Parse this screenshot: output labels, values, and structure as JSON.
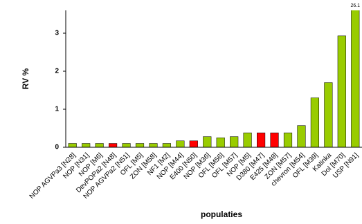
{
  "chart_data": {
    "type": "bar",
    "x_label": "populaties",
    "y_label": "RV %",
    "categories": [
      "NOP AGVPa3 [N28]",
      "NOP [N31]",
      "NOP [M6]",
      "DevPOPa2 [N48]",
      "NOP AGVPa2 [N51]",
      "OFL [M5]",
      "ZON [M58]",
      "NF1 [M2]",
      "NOP [M44]",
      "E400 [N50]",
      "NOP [M36]",
      "OFL [M56]",
      "OFL [M57]",
      "NOP [M5]",
      "D380 [M47]",
      "E425 [M49]",
      "ZON [M57]",
      "chevron [M54]",
      "OFL [M39]",
      "Katinka",
      "Dol [M70]",
      "USP [N91]"
    ],
    "values": [
      0.1,
      0.1,
      0.1,
      0.1,
      0.1,
      0.1,
      0.1,
      0.1,
      0.17,
      0.17,
      0.28,
      0.25,
      0.28,
      0.38,
      0.38,
      0.38,
      0.38,
      0.57,
      1.3,
      1.7,
      2.93,
      26.1
    ],
    "value_labels": [
      null,
      null,
      null,
      null,
      null,
      null,
      null,
      null,
      null,
      null,
      null,
      null,
      null,
      null,
      null,
      null,
      null,
      null,
      null,
      null,
      null,
      "26.1"
    ],
    "colors": [
      "#99cc00",
      "#99cc00",
      "#99cc00",
      "#ff0000",
      "#99cc00",
      "#99cc00",
      "#99cc00",
      "#99cc00",
      "#99cc00",
      "#ff0000",
      "#99cc00",
      "#99cc00",
      "#99cc00",
      "#99cc00",
      "#ff0000",
      "#ff0000",
      "#99cc00",
      "#99cc00",
      "#99cc00",
      "#99cc00",
      "#99cc00",
      "#99cc00"
    ],
    "ylim": [
      0,
      3.6
    ],
    "yticks": [
      0,
      1,
      2,
      3
    ],
    "grid": false
  }
}
